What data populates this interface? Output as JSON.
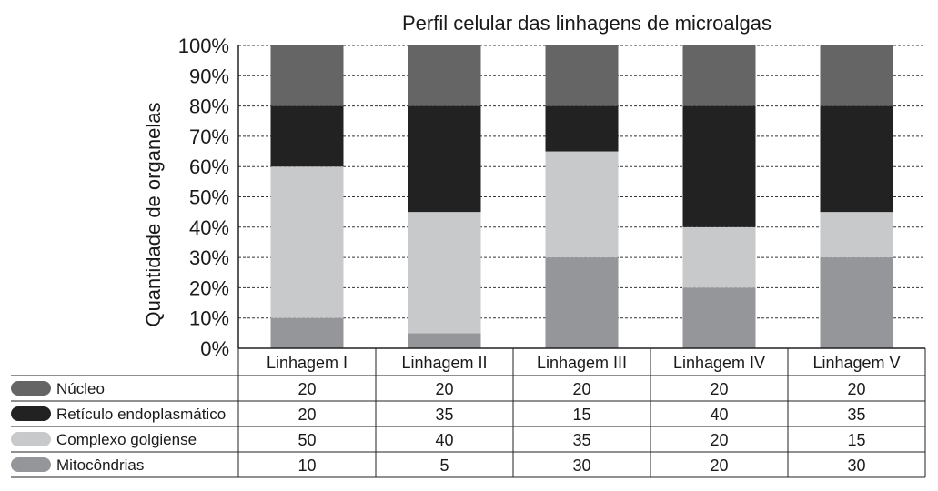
{
  "chart_data": {
    "type": "bar",
    "stacked": true,
    "normalized_percent": true,
    "title": "Perfil celular das linhagens de microalgas",
    "xlabel": "",
    "ylabel": "Quantidade de organelas",
    "ylim": [
      0,
      100
    ],
    "yticks": [
      "0%",
      "10%",
      "20%",
      "30%",
      "40%",
      "50%",
      "60%",
      "70%",
      "80%",
      "90%",
      "100%"
    ],
    "grid": true,
    "categories": [
      "Linhagem I",
      "Linhagem II",
      "Linhagem III",
      "Linhagem IV",
      "Linhagem V"
    ],
    "series": [
      {
        "name": "Núcleo",
        "color": "#656565",
        "values": [
          20,
          20,
          20,
          20,
          20
        ]
      },
      {
        "name": "Retículo endoplasmático",
        "color": "#222222",
        "values": [
          20,
          35,
          15,
          40,
          35
        ]
      },
      {
        "name": "Complexo golgiense",
        "color": "#c8c9cb",
        "values": [
          50,
          40,
          35,
          20,
          15
        ]
      },
      {
        "name": "Mitocôndrias",
        "color": "#95969a",
        "values": [
          10,
          5,
          30,
          20,
          30
        ]
      }
    ],
    "stack_order_bottom_to_top": [
      "Mitocôndrias",
      "Complexo golgiense",
      "Retículo endoplasmático",
      "Núcleo"
    ],
    "legend_placement": "data-table-below"
  }
}
